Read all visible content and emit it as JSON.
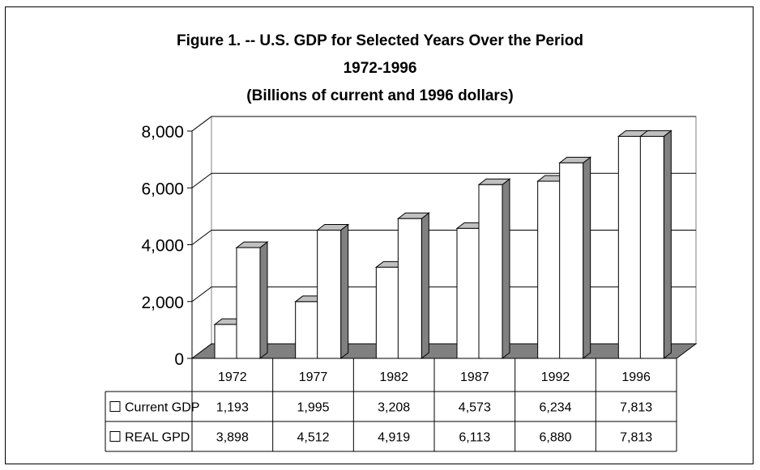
{
  "chart_data": {
    "type": "bar",
    "title_lines": [
      "Figure 1. -- U.S. GDP for Selected Years Over the Period",
      "1972-1996",
      "(Billions of current  and 1996 dollars)"
    ],
    "categories": [
      "1972",
      "1977",
      "1982",
      "1987",
      "1992",
      "1996"
    ],
    "series": [
      {
        "name": "Current GDP",
        "values": [
          1193,
          1995,
          3208,
          4573,
          6234,
          7813
        ],
        "labels": [
          "1,193",
          "1,995",
          "3,208",
          "4,573",
          "6,234",
          "7,813"
        ]
      },
      {
        "name": "REAL GPD",
        "values": [
          3898,
          4512,
          4919,
          6113,
          6880,
          7813
        ],
        "labels": [
          "3,898",
          "4,512",
          "4,919",
          "6,113",
          "6,880",
          "7,813"
        ]
      }
    ],
    "y_ticks": [
      "0",
      "2,000",
      "4,000",
      "6,000",
      "8,000"
    ],
    "ylim": [
      0,
      8000
    ],
    "grid": true,
    "legend": "data-table",
    "colors": {
      "bar_face": "#ffffff",
      "bar_side": "#808080",
      "bar_top": "#c0c0c0",
      "floor": "#808080",
      "grid": "#000000"
    }
  }
}
